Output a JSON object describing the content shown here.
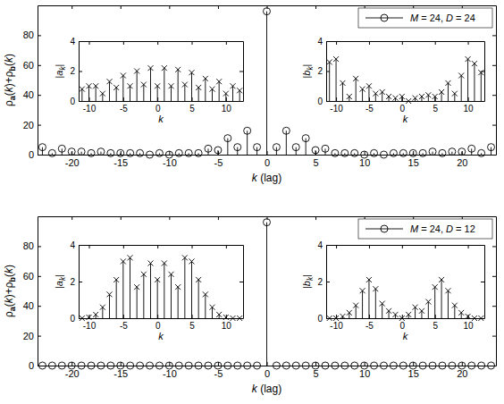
{
  "chart_data": [
    {
      "type": "stem",
      "x_label": "k (lag)",
      "y_label": "ρa(k)+ρb(k)",
      "x": [
        -23,
        -22,
        -21,
        -20,
        -19,
        -18,
        -17,
        -16,
        -15,
        -14,
        -13,
        -12,
        -11,
        -10,
        -9,
        -8,
        -7,
        -6,
        -5,
        -4,
        -3,
        -2,
        -1,
        0,
        1,
        2,
        3,
        4,
        5,
        6,
        7,
        8,
        9,
        10,
        11,
        12,
        13,
        14,
        15,
        16,
        17,
        18,
        19,
        20,
        21,
        22,
        23
      ],
      "series": [
        {
          "name": "M = 24, D = 24",
          "color": "#000000",
          "marker": "circle",
          "values": [
            5,
            1,
            4,
            2,
            2,
            1,
            2,
            1,
            1,
            1,
            1,
            0,
            1,
            0,
            1,
            1,
            1,
            4,
            3,
            11,
            5,
            16,
            5,
            96,
            5,
            16,
            5,
            11,
            3,
            4,
            1,
            1,
            1,
            0,
            1,
            0,
            1,
            1,
            1,
            1,
            2,
            1,
            2,
            2,
            4,
            1,
            5
          ]
        }
      ],
      "xlim": [
        -23.5,
        23.5
      ],
      "ylim": [
        0,
        100
      ],
      "xticks": [
        -20,
        -15,
        -10,
        -5,
        0,
        5,
        10,
        15,
        20
      ],
      "yticks": [
        0,
        20,
        40,
        60,
        80
      ],
      "legend": "upper right",
      "grid": false
    },
    {
      "type": "stem",
      "x_label": "k",
      "y_label": "|ak|",
      "color": "#000000",
      "marker": "x",
      "x": [
        -11,
        -10,
        -9,
        -8,
        -7,
        -6,
        -5,
        -4,
        -3,
        -2,
        -1,
        0,
        1,
        2,
        3,
        4,
        5,
        6,
        7,
        8,
        9,
        10,
        11,
        12
      ],
      "values": [
        0.8,
        1.0,
        1.0,
        0.5,
        1.3,
        0.9,
        1.7,
        1.0,
        2.0,
        1.1,
        2.2,
        1.0,
        2.2,
        1.0,
        2.1,
        1.1,
        1.9,
        0.9,
        1.5,
        0.8,
        1.3,
        0.5,
        1.0,
        0.7
      ],
      "xlim": [
        -11.5,
        12.5
      ],
      "ylim": [
        0,
        4
      ],
      "xticks": [
        -10,
        -5,
        0,
        5,
        10
      ],
      "yticks": [
        0,
        2,
        4
      ],
      "grid": false
    },
    {
      "type": "stem",
      "x_label": "k",
      "y_label": "|bk|",
      "color": "#000000",
      "marker": "x",
      "x": [
        -11,
        -10,
        -9,
        -8,
        -7,
        -6,
        -5,
        -4,
        -3,
        -2,
        -1,
        0,
        1,
        2,
        3,
        4,
        5,
        6,
        7,
        8,
        9,
        10,
        11,
        12
      ],
      "values": [
        2.6,
        2.8,
        1.2,
        0.3,
        1.5,
        0.8,
        1.0,
        0.5,
        0.6,
        0.3,
        0.2,
        0.3,
        0.0,
        0.2,
        0.3,
        0.4,
        0.3,
        0.6,
        1.2,
        0.5,
        1.7,
        2.8,
        2.5,
        1.9
      ],
      "xlim": [
        -11.5,
        12.5
      ],
      "ylim": [
        0,
        4
      ],
      "xticks": [
        -10,
        -5,
        0,
        5,
        10
      ],
      "yticks": [
        0,
        2,
        4
      ],
      "grid": false
    },
    {
      "type": "stem",
      "x_label": "k (lag)",
      "y_label": "ρa(k)+ρb(k)",
      "x": [
        -23,
        -22,
        -21,
        -20,
        -19,
        -18,
        -17,
        -16,
        -15,
        -14,
        -13,
        -12,
        -11,
        -10,
        -9,
        -8,
        -7,
        -6,
        -5,
        -4,
        -3,
        -2,
        -1,
        0,
        1,
        2,
        3,
        4,
        5,
        6,
        7,
        8,
        9,
        10,
        11,
        12,
        13,
        14,
        15,
        16,
        17,
        18,
        19,
        20,
        21,
        22,
        23
      ],
      "series": [
        {
          "name": "M = 24, D = 12",
          "color": "#000000",
          "marker": "circle",
          "values": [
            0,
            0,
            0,
            0,
            0,
            0,
            0,
            0,
            0,
            0,
            0,
            0,
            0,
            0,
            0,
            0,
            0,
            0,
            0,
            0,
            0,
            0,
            0,
            96,
            0,
            0,
            0,
            0,
            0,
            0,
            0,
            0,
            0,
            0,
            0,
            0,
            0,
            0,
            0,
            0,
            0,
            0,
            0,
            0,
            0,
            0,
            0
          ]
        }
      ],
      "xlim": [
        -23.5,
        23.5
      ],
      "ylim": [
        0,
        100
      ],
      "xticks": [
        -20,
        -15,
        -10,
        -5,
        0,
        5,
        10,
        15,
        20
      ],
      "yticks": [
        0,
        20,
        40,
        60,
        80
      ],
      "legend": "upper right",
      "grid": false
    },
    {
      "type": "stem",
      "x_label": "k",
      "y_label": "|ak|",
      "color": "#000000",
      "marker": "x",
      "x": [
        -11,
        -10,
        -9,
        -8,
        -7,
        -6,
        -5,
        -4,
        -3,
        -2,
        -1,
        0,
        1,
        2,
        3,
        4,
        5,
        6,
        7,
        8,
        9,
        10,
        11,
        12
      ],
      "values": [
        0,
        0.05,
        0.2,
        0.6,
        1.3,
        2.1,
        3.1,
        3.3,
        1.7,
        2.4,
        3.0,
        2.1,
        3.0,
        2.4,
        1.7,
        3.3,
        3.1,
        2.1,
        1.3,
        0.6,
        0.2,
        0.05,
        0,
        0
      ],
      "xlim": [
        -11.5,
        12.5
      ],
      "ylim": [
        0,
        4
      ],
      "xticks": [
        -10,
        -5,
        0,
        5,
        10
      ],
      "yticks": [
        0,
        2,
        4
      ],
      "grid": false
    },
    {
      "type": "stem",
      "x_label": "k",
      "y_label": "|bk|",
      "color": "#000000",
      "marker": "x",
      "x": [
        -11,
        -10,
        -9,
        -8,
        -7,
        -6,
        -5,
        -4,
        -3,
        -2,
        -1,
        0,
        1,
        2,
        3,
        4,
        5,
        6,
        7,
        8,
        9,
        10,
        11,
        12
      ],
      "values": [
        0,
        0,
        0.1,
        0.3,
        0.7,
        1.5,
        2.1,
        1.6,
        0.8,
        0.4,
        0.2,
        0,
        0.2,
        0.6,
        0.4,
        0.9,
        1.7,
        2.1,
        1.5,
        0.7,
        0.3,
        0.1,
        0,
        0
      ],
      "xlim": [
        -11.5,
        12.5
      ],
      "ylim": [
        0,
        4
      ],
      "xticks": [
        -10,
        -5,
        0,
        5,
        10
      ],
      "yticks": [
        0,
        2,
        4
      ],
      "grid": false
    }
  ]
}
